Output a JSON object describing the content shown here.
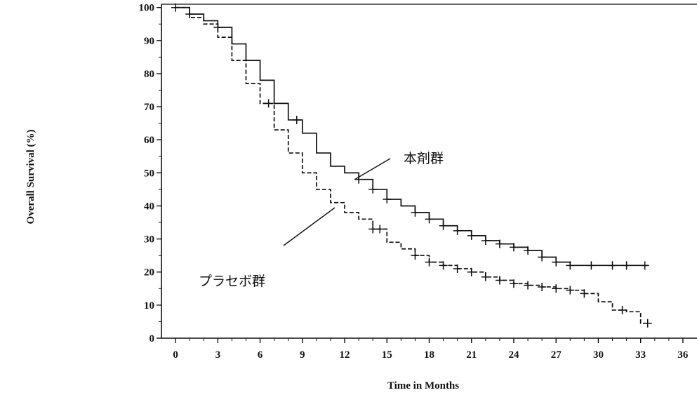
{
  "chart_data": {
    "type": "line",
    "title": "",
    "xlabel": "Time in Months",
    "ylabel": "Overall Survival (%)",
    "xlim": [
      -1,
      37
    ],
    "ylim": [
      0,
      101
    ],
    "xticks": [
      0,
      3,
      6,
      9,
      12,
      15,
      18,
      21,
      24,
      27,
      30,
      33,
      36
    ],
    "yticks": [
      0,
      10,
      20,
      30,
      40,
      50,
      60,
      70,
      80,
      90,
      100
    ],
    "grid": false,
    "legend": "none",
    "series": [
      {
        "name": "本剤群",
        "style": "solid",
        "color": "#111111",
        "x": [
          0,
          1,
          2,
          3,
          4,
          5,
          6,
          7,
          8,
          9,
          10,
          11,
          12,
          13,
          14,
          15,
          16,
          17,
          18,
          19,
          20,
          21,
          22,
          23,
          24,
          25,
          26,
          27,
          28,
          29,
          30,
          31,
          32,
          33,
          33.5
        ],
        "y": [
          100,
          98,
          96,
          94,
          89,
          84,
          78,
          71,
          66,
          62,
          56,
          52,
          50,
          48,
          45,
          42,
          40,
          38,
          36,
          34,
          32.5,
          31,
          29.5,
          28.5,
          27.5,
          26.5,
          24.5,
          23,
          22,
          22,
          22,
          22,
          22,
          22,
          22
        ]
      },
      {
        "name": "プラセボ群",
        "style": "dashed",
        "color": "#111111",
        "x": [
          0,
          1,
          2,
          3,
          4,
          5,
          6,
          7,
          8,
          9,
          10,
          11,
          12,
          13,
          14,
          15,
          16,
          17,
          18,
          19,
          20,
          21,
          22,
          23,
          24,
          25,
          26,
          27,
          28,
          29,
          30,
          31,
          32,
          33,
          33.5
        ],
        "y": [
          100,
          97,
          95,
          91,
          84,
          77,
          71,
          63,
          56,
          50,
          45,
          41,
          38,
          36,
          33,
          29,
          27,
          25,
          23,
          22,
          21,
          20,
          18.5,
          17.5,
          16.5,
          16,
          15.5,
          15,
          14.5,
          13.5,
          11,
          8.5,
          8,
          4.5,
          4.5
        ]
      }
    ],
    "censor_marks": {
      "本剤群": [
        0,
        1,
        3,
        8.6,
        13,
        14,
        15,
        17,
        18,
        19,
        20,
        21,
        22,
        23,
        24,
        25,
        26,
        27,
        28,
        29.5,
        31,
        32,
        33.3
      ],
      "プラセボ群": [
        6.6,
        14,
        14.5,
        17,
        18,
        19,
        20,
        21,
        22,
        23,
        24,
        25,
        26,
        27,
        28,
        29,
        31.7,
        33.5
      ]
    },
    "annotations": [
      {
        "text": "本剤群",
        "series": "本剤群"
      },
      {
        "text": "プラセボ群",
        "series": "プラセボ群"
      }
    ]
  }
}
